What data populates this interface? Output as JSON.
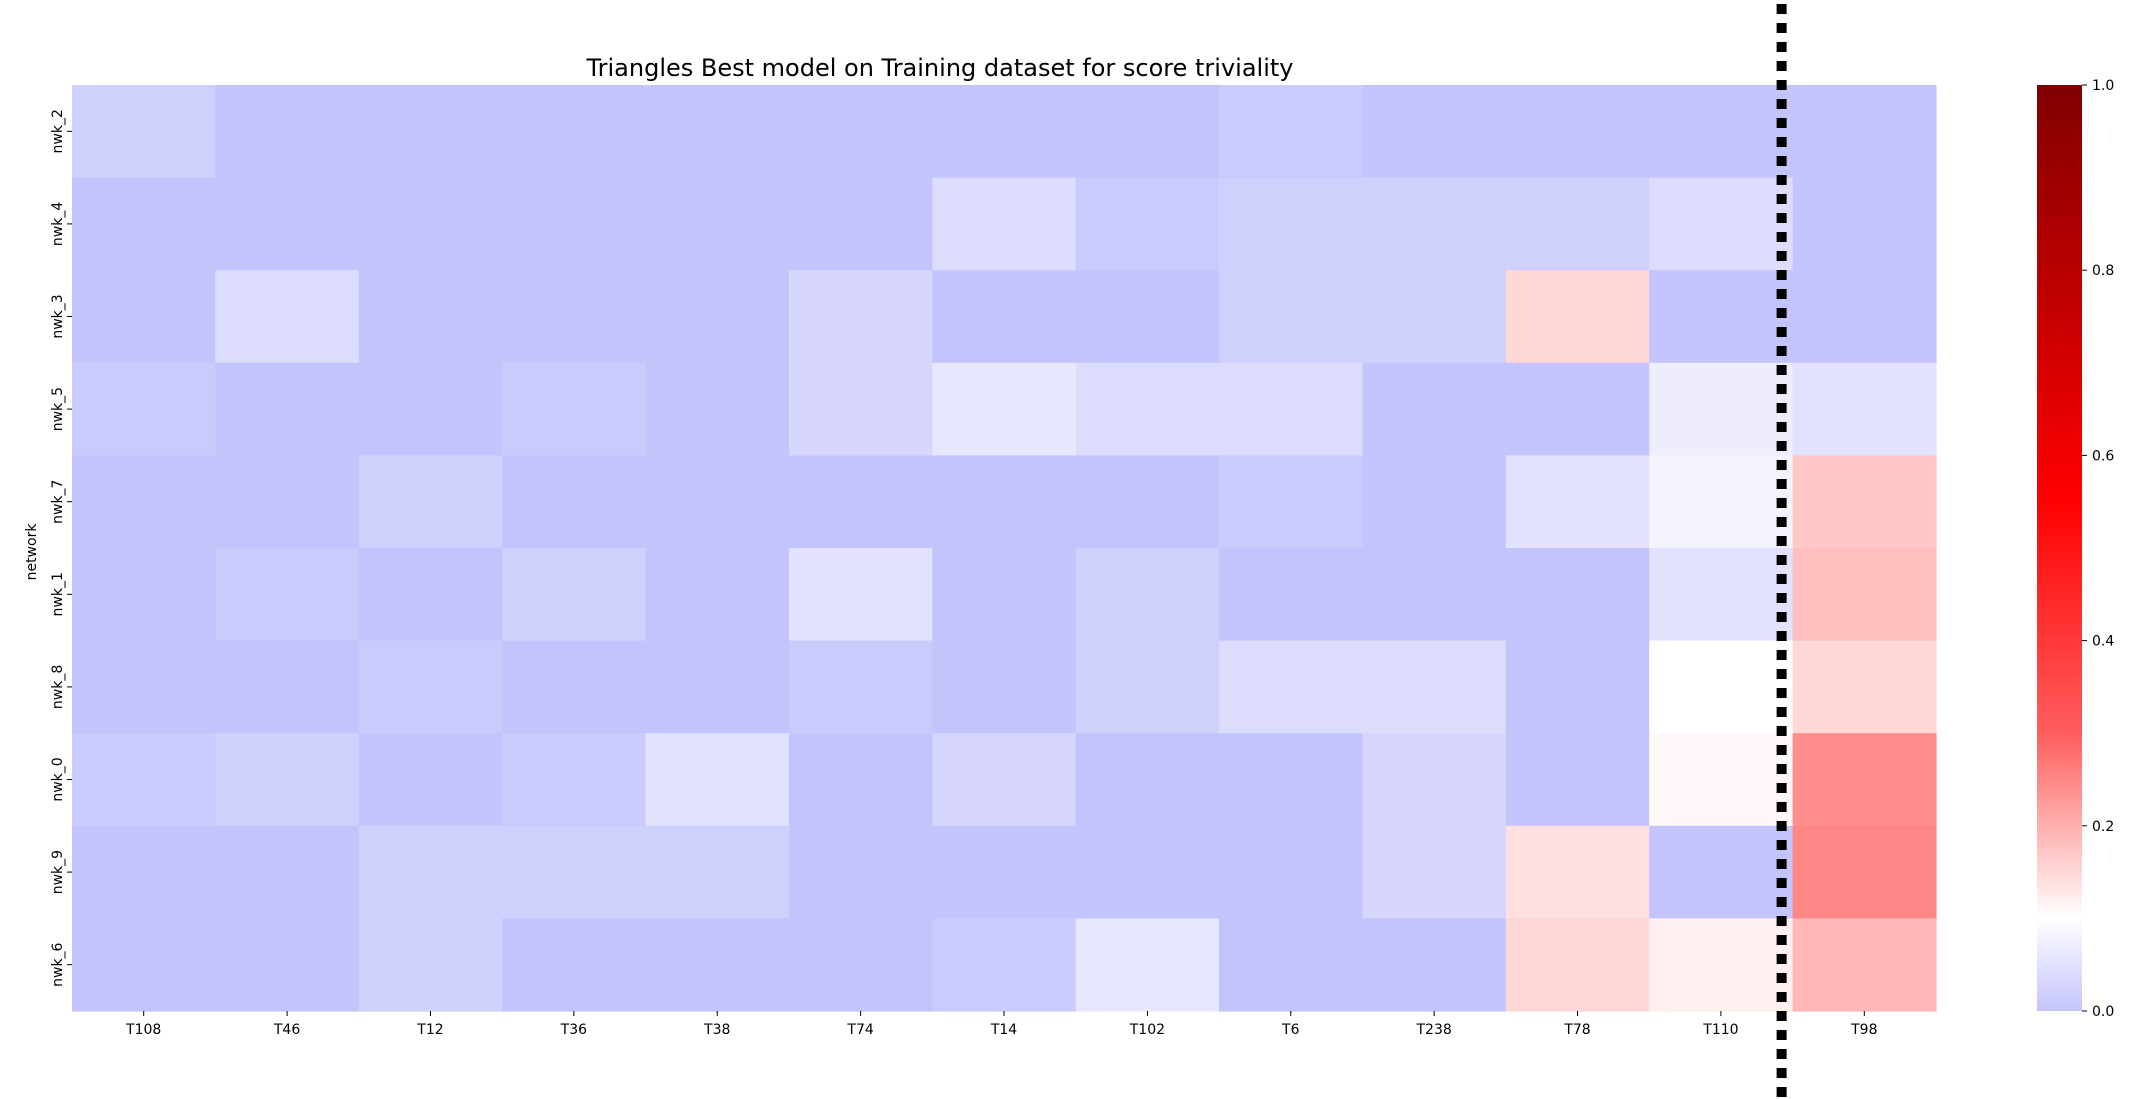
{
  "chart_data": {
    "type": "heatmap",
    "title": "Triangles Best model on Training dataset for score triviality",
    "xlabel": "",
    "ylabel": "network",
    "columns": [
      "T108",
      "T46",
      "T12",
      "T36",
      "T38",
      "T74",
      "T14",
      "T102",
      "T6",
      "T238",
      "T78",
      "T110",
      "T98"
    ],
    "rows": [
      "nwk_2",
      "nwk_4",
      "nwk_3",
      "nwk_5",
      "nwk_7",
      "nwk_1",
      "nwk_8",
      "nwk_0",
      "nwk_9",
      "nwk_6"
    ],
    "values": [
      [
        0.02,
        0.0,
        0.0,
        0.0,
        0.0,
        0.0,
        0.0,
        0.0,
        0.01,
        0.0,
        0.0,
        0.0,
        0.0
      ],
      [
        0.0,
        0.0,
        0.0,
        0.0,
        0.0,
        0.0,
        0.04,
        0.01,
        0.02,
        0.02,
        0.02,
        0.04,
        0.0
      ],
      [
        0.0,
        0.04,
        0.0,
        0.0,
        0.0,
        0.03,
        0.0,
        0.0,
        0.02,
        0.02,
        0.15,
        0.0,
        0.0
      ],
      [
        0.01,
        0.0,
        0.0,
        0.01,
        0.0,
        0.03,
        0.06,
        0.04,
        0.04,
        0.0,
        0.0,
        0.07,
        0.05
      ],
      [
        0.0,
        0.0,
        0.02,
        0.0,
        0.0,
        0.0,
        0.0,
        0.0,
        0.01,
        0.0,
        0.05,
        0.08,
        0.17
      ],
      [
        0.0,
        0.01,
        0.0,
        0.02,
        0.0,
        0.05,
        0.0,
        0.02,
        0.0,
        0.0,
        0.0,
        0.05,
        0.18
      ],
      [
        0.0,
        0.0,
        0.01,
        0.0,
        0.0,
        0.01,
        0.0,
        0.02,
        0.04,
        0.04,
        0.0,
        0.1,
        0.15
      ],
      [
        0.01,
        0.02,
        0.0,
        0.01,
        0.05,
        0.0,
        0.03,
        0.0,
        0.0,
        0.03,
        0.0,
        0.11,
        0.24
      ],
      [
        0.0,
        0.0,
        0.02,
        0.02,
        0.02,
        0.0,
        0.0,
        0.0,
        0.0,
        0.03,
        0.14,
        0.0,
        0.25
      ],
      [
        0.0,
        0.0,
        0.02,
        0.0,
        0.0,
        0.0,
        0.01,
        0.06,
        0.0,
        0.0,
        0.15,
        0.12,
        0.19
      ]
    ],
    "colorbar": {
      "min": 0.0,
      "max": 1.0,
      "ticks": [
        "0.0",
        "0.2",
        "0.4",
        "0.6",
        "0.8",
        "1.0"
      ]
    },
    "colormap": [
      [
        0.0,
        "#c4c4fc"
      ],
      [
        0.1,
        "#ffffff"
      ],
      [
        0.3,
        "#ff5e5e"
      ],
      [
        0.55,
        "#ff0000"
      ],
      [
        1.0,
        "#800000"
      ]
    ],
    "separator_after_column": "T110",
    "separator_color": "#000000"
  }
}
